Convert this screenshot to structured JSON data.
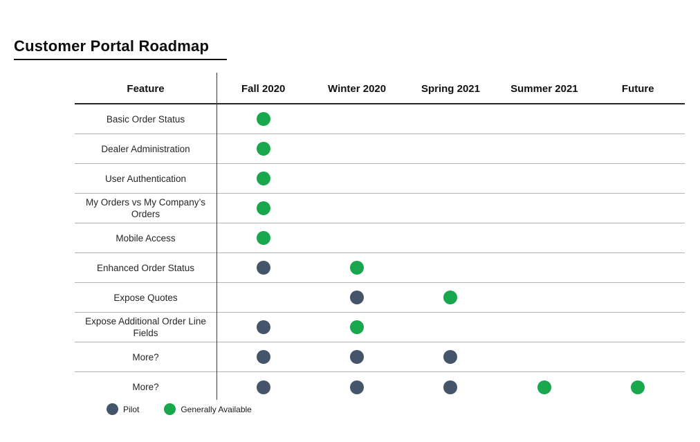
{
  "page": {
    "title": "Customer Portal Roadmap"
  },
  "table": {
    "feature_header": "Feature",
    "columns": [
      "Fall 2020",
      "Winter 2020",
      "Spring 2021",
      "Summer 2021",
      "Future"
    ],
    "rows": [
      {
        "feature": "Basic Order Status",
        "statuses": [
          "ga",
          null,
          null,
          null,
          null
        ]
      },
      {
        "feature": "Dealer Administration",
        "statuses": [
          "ga",
          null,
          null,
          null,
          null
        ]
      },
      {
        "feature": "User Authentication",
        "statuses": [
          "ga",
          null,
          null,
          null,
          null
        ]
      },
      {
        "feature": "My Orders vs My Company’s Orders",
        "statuses": [
          "ga",
          null,
          null,
          null,
          null
        ]
      },
      {
        "feature": "Mobile Access",
        "statuses": [
          "ga",
          null,
          null,
          null,
          null
        ]
      },
      {
        "feature": "Enhanced Order Status",
        "statuses": [
          "pilot",
          "ga",
          null,
          null,
          null
        ]
      },
      {
        "feature": "Expose Quotes",
        "statuses": [
          null,
          "pilot",
          "ga",
          null,
          null
        ]
      },
      {
        "feature": "Expose Additional Order Line Fields",
        "statuses": [
          "pilot",
          "ga",
          null,
          null,
          null
        ]
      },
      {
        "feature": "More?",
        "statuses": [
          "pilot",
          "pilot",
          "pilot",
          null,
          null
        ]
      },
      {
        "feature": "More?",
        "statuses": [
          "pilot",
          "pilot",
          "pilot",
          "ga",
          "ga"
        ]
      }
    ]
  },
  "legend": [
    {
      "key": "pilot",
      "label": "Pilot"
    },
    {
      "key": "ga",
      "label": "Generally Available"
    }
  ],
  "colors": {
    "pilot": "#44546A",
    "ga": "#18A74D"
  }
}
